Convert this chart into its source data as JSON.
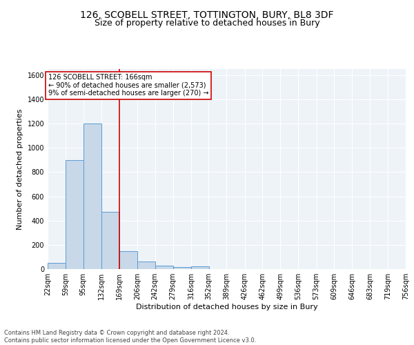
{
  "title_line1": "126, SCOBELL STREET, TOTTINGTON, BURY, BL8 3DF",
  "title_line2": "Size of property relative to detached houses in Bury",
  "xlabel": "Distribution of detached houses by size in Bury",
  "ylabel": "Number of detached properties",
  "bin_edges": [
    22,
    59,
    95,
    132,
    169,
    206,
    242,
    279,
    316,
    352,
    389,
    426,
    462,
    499,
    536,
    573,
    609,
    646,
    683,
    719,
    756
  ],
  "bin_counts": [
    50,
    900,
    1200,
    470,
    150,
    60,
    30,
    15,
    20,
    0,
    0,
    0,
    0,
    0,
    0,
    0,
    0,
    0,
    0,
    0
  ],
  "bar_color": "#c8d8e8",
  "bar_edge_color": "#5b9bd5",
  "vline_x": 169,
  "vline_color": "#cc0000",
  "annotation_text": "126 SCOBELL STREET: 166sqm\n← 90% of detached houses are smaller (2,573)\n9% of semi-detached houses are larger (270) →",
  "annotation_box_color": "#ffffff",
  "annotation_box_edge": "#cc0000",
  "ylim": [
    0,
    1650
  ],
  "yticks": [
    0,
    200,
    400,
    600,
    800,
    1000,
    1200,
    1400,
    1600
  ],
  "tick_labels": [
    "22sqm",
    "59sqm",
    "95sqm",
    "132sqm",
    "169sqm",
    "206sqm",
    "242sqm",
    "279sqm",
    "316sqm",
    "352sqm",
    "389sqm",
    "426sqm",
    "462sqm",
    "499sqm",
    "536sqm",
    "573sqm",
    "609sqm",
    "646sqm",
    "683sqm",
    "719sqm",
    "756sqm"
  ],
  "footnote": "Contains HM Land Registry data © Crown copyright and database right 2024.\nContains public sector information licensed under the Open Government Licence v3.0.",
  "bg_color": "#eef3f8",
  "title_fontsize": 10,
  "subtitle_fontsize": 9,
  "axis_label_fontsize": 8,
  "tick_fontsize": 7
}
